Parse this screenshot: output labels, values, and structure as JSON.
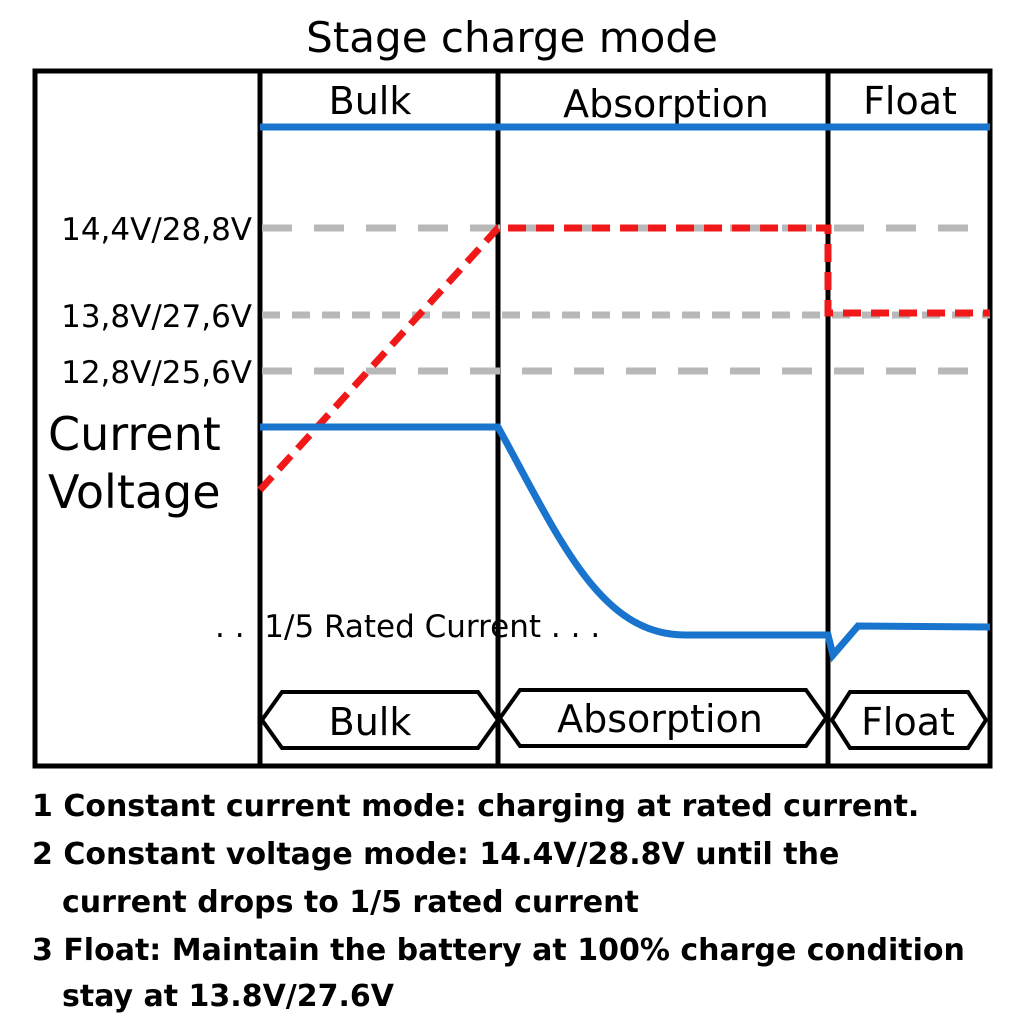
{
  "title": "Stage charge mode",
  "stages_top": [
    "Bulk",
    "Absorption",
    "Float"
  ],
  "voltage_levels": [
    "14,4V/28,8V",
    "13,8V/27,6V",
    "12,8V/25,6V"
  ],
  "axis_labels": [
    "Current",
    "Voltage"
  ],
  "annotation": ". . .1/5 Rated Current . . .",
  "stages_bottom": [
    "Bulk",
    "Absorption",
    "Float"
  ],
  "notes": [
    {
      "lines": [
        "1  Constant current mode: charging at rated current."
      ]
    },
    {
      "lines": [
        "2 Constant voltage mode: 14.4V/28.8V until the",
        "current drops to 1/5 rated current"
      ]
    },
    {
      "lines": [
        "3 Float: Maintain the battery at 100% charge condition",
        "stay at 13.8V/27.6V"
      ]
    }
  ]
}
